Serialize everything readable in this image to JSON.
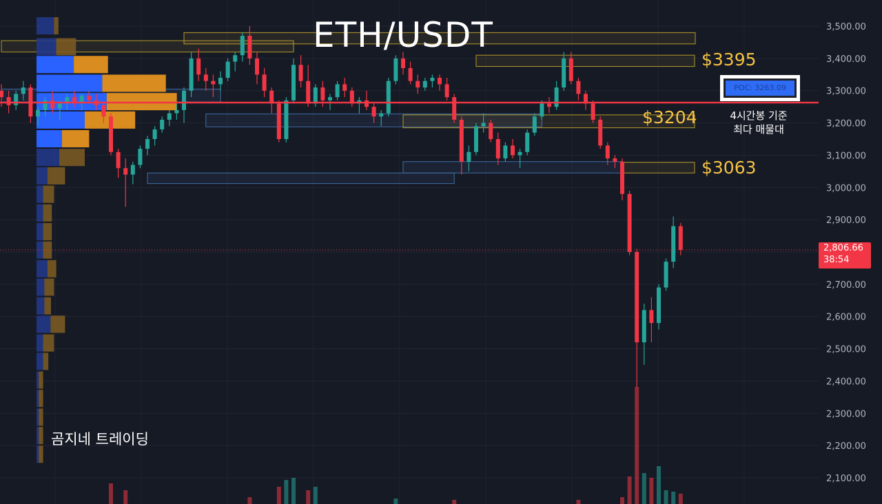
{
  "title": "ETH/USDT",
  "watermark": "곰지네 트레이딩",
  "poc_label": "POC: 3263.09",
  "poc_note": [
    "4시간봉 기준",
    "최다 매물대"
  ],
  "levels": [
    {
      "label": "$3395",
      "price": 3395
    },
    {
      "label": "$3204",
      "price": 3204
    },
    {
      "label": "$3063",
      "price": 3063
    }
  ],
  "last_price": {
    "value": "2,806.66",
    "countdown": "38:54"
  },
  "colors": {
    "background": "#161a25",
    "bull": "#26a69a",
    "bear": "#f23645",
    "poc_line": "#f23645",
    "level_text": "#f5c242",
    "profile_blue": "#2962ff",
    "profile_orange": "#f7931a"
  },
  "chart_data": {
    "type": "candlestick",
    "symbol": "ETH/USDT",
    "y_axis": {
      "ticks": [
        "3,500.00",
        "3,400.00",
        "3,300.00",
        "3,200.00",
        "3,100.00",
        "3,000.00",
        "2,900.00",
        "2,800.00",
        "2,700.00",
        "2,600.00",
        "2,500.00",
        "2,400.00",
        "2,300.00",
        "2,200.00",
        "2,100.00"
      ],
      "ylim": [
        2060,
        3570
      ]
    },
    "poc": 3263.09,
    "last_price": 2806.66,
    "candles": [
      [
        3300,
        3320,
        3250,
        3280
      ],
      [
        3280,
        3300,
        3230,
        3255
      ],
      [
        3255,
        3300,
        3240,
        3290
      ],
      [
        3290,
        3330,
        3270,
        3310
      ],
      [
        3310,
        3320,
        3200,
        3220
      ],
      [
        3220,
        3250,
        3190,
        3240
      ],
      [
        3240,
        3280,
        3220,
        3270
      ],
      [
        3270,
        3300,
        3230,
        3245
      ],
      [
        3245,
        3270,
        3210,
        3260
      ],
      [
        3260,
        3290,
        3240,
        3280
      ],
      [
        3280,
        3300,
        3250,
        3265
      ],
      [
        3265,
        3290,
        3240,
        3285
      ],
      [
        3285,
        3300,
        3260,
        3270
      ],
      [
        3270,
        3290,
        3240,
        3255
      ],
      [
        3255,
        3270,
        3200,
        3220
      ],
      [
        3220,
        3230,
        3100,
        3110
      ],
      [
        3110,
        3120,
        3030,
        3060
      ],
      [
        3060,
        3090,
        2940,
        3040
      ],
      [
        3040,
        3080,
        3010,
        3070
      ],
      [
        3070,
        3130,
        3060,
        3120
      ],
      [
        3120,
        3160,
        3100,
        3150
      ],
      [
        3150,
        3190,
        3130,
        3180
      ],
      [
        3180,
        3220,
        3170,
        3210
      ],
      [
        3210,
        3240,
        3190,
        3230
      ],
      [
        3230,
        3260,
        3210,
        3240
      ],
      [
        3240,
        3310,
        3200,
        3300
      ],
      [
        3300,
        3420,
        3280,
        3400
      ],
      [
        3400,
        3430,
        3330,
        3350
      ],
      [
        3350,
        3370,
        3300,
        3330
      ],
      [
        3330,
        3350,
        3280,
        3320
      ],
      [
        3320,
        3360,
        3300,
        3340
      ],
      [
        3340,
        3400,
        3330,
        3390
      ],
      [
        3390,
        3420,
        3360,
        3410
      ],
      [
        3410,
        3480,
        3390,
        3470
      ],
      [
        3470,
        3500,
        3380,
        3400
      ],
      [
        3400,
        3420,
        3320,
        3350
      ],
      [
        3350,
        3370,
        3280,
        3300
      ],
      [
        3300,
        3310,
        3230,
        3260
      ],
      [
        3260,
        3270,
        3140,
        3150
      ],
      [
        3150,
        3280,
        3140,
        3270
      ],
      [
        3270,
        3400,
        3260,
        3380
      ],
      [
        3380,
        3410,
        3310,
        3330
      ],
      [
        3330,
        3380,
        3250,
        3260
      ],
      [
        3260,
        3320,
        3250,
        3310
      ],
      [
        3310,
        3330,
        3250,
        3270
      ],
      [
        3270,
        3290,
        3240,
        3280
      ],
      [
        3280,
        3330,
        3270,
        3320
      ],
      [
        3320,
        3340,
        3280,
        3300
      ],
      [
        3300,
        3310,
        3250,
        3260
      ],
      [
        3260,
        3280,
        3230,
        3270
      ],
      [
        3270,
        3300,
        3240,
        3250
      ],
      [
        3250,
        3260,
        3200,
        3220
      ],
      [
        3220,
        3240,
        3190,
        3230
      ],
      [
        3230,
        3340,
        3220,
        3330
      ],
      [
        3330,
        3410,
        3320,
        3400
      ],
      [
        3400,
        3420,
        3350,
        3370
      ],
      [
        3370,
        3390,
        3320,
        3330
      ],
      [
        3330,
        3350,
        3290,
        3310
      ],
      [
        3310,
        3340,
        3300,
        3330
      ],
      [
        3330,
        3350,
        3310,
        3340
      ],
      [
        3340,
        3350,
        3300,
        3320
      ],
      [
        3320,
        3340,
        3270,
        3280
      ],
      [
        3280,
        3290,
        3200,
        3210
      ],
      [
        3210,
        3220,
        3040,
        3080
      ],
      [
        3080,
        3130,
        3050,
        3110
      ],
      [
        3110,
        3200,
        3100,
        3190
      ],
      [
        3190,
        3230,
        3170,
        3200
      ],
      [
        3200,
        3210,
        3140,
        3150
      ],
      [
        3150,
        3170,
        3070,
        3090
      ],
      [
        3090,
        3140,
        3080,
        3130
      ],
      [
        3130,
        3150,
        3090,
        3100
      ],
      [
        3100,
        3120,
        3060,
        3110
      ],
      [
        3110,
        3180,
        3100,
        3170
      ],
      [
        3170,
        3230,
        3160,
        3220
      ],
      [
        3220,
        3270,
        3210,
        3260
      ],
      [
        3260,
        3280,
        3230,
        3250
      ],
      [
        3250,
        3330,
        3240,
        3310
      ],
      [
        3310,
        3420,
        3300,
        3400
      ],
      [
        3400,
        3420,
        3320,
        3330
      ],
      [
        3330,
        3340,
        3270,
        3290
      ],
      [
        3290,
        3300,
        3240,
        3260
      ],
      [
        3260,
        3270,
        3200,
        3210
      ],
      [
        3210,
        3220,
        3120,
        3130
      ],
      [
        3130,
        3140,
        3070,
        3090
      ],
      [
        3090,
        3100,
        3060,
        3080
      ],
      [
        3080,
        3090,
        2960,
        2980
      ],
      [
        2980,
        2990,
        2790,
        2800
      ],
      [
        2800,
        2810,
        2380,
        2520
      ],
      [
        2520,
        2640,
        2450,
        2620
      ],
      [
        2620,
        2660,
        2520,
        2580
      ],
      [
        2580,
        2700,
        2560,
        2690
      ],
      [
        2690,
        2780,
        2680,
        2770
      ],
      [
        2770,
        2910,
        2750,
        2880
      ],
      [
        2880,
        2890,
        2790,
        2806.66
      ]
    ],
    "volume_profile": [
      {
        "price": 3500,
        "buy": 40,
        "sell": 10
      },
      {
        "price": 3435,
        "buy": 45,
        "sell": 45
      },
      {
        "price": 3380,
        "buy": 85,
        "sell": 78
      },
      {
        "price": 3322,
        "buy": 150,
        "sell": 145
      },
      {
        "price": 3265,
        "buy": 160,
        "sell": 160
      },
      {
        "price": 3208,
        "buy": 110,
        "sell": 115
      },
      {
        "price": 3150,
        "buy": 58,
        "sell": 62
      },
      {
        "price": 3092,
        "buy": 52,
        "sell": 58
      },
      {
        "price": 3035,
        "buy": 25,
        "sell": 40
      },
      {
        "price": 2978,
        "buy": 15,
        "sell": 25
      },
      {
        "price": 2920,
        "buy": 15,
        "sell": 20
      },
      {
        "price": 2862,
        "buy": 15,
        "sell": 20
      },
      {
        "price": 2805,
        "buy": 15,
        "sell": 20
      },
      {
        "price": 2747,
        "buy": 25,
        "sell": 20
      },
      {
        "price": 2690,
        "buy": 18,
        "sell": 22
      },
      {
        "price": 2632,
        "buy": 18,
        "sell": 15
      },
      {
        "price": 2575,
        "buy": 32,
        "sell": 33
      },
      {
        "price": 2517,
        "buy": 15,
        "sell": 25
      },
      {
        "price": 2460,
        "buy": 15,
        "sell": 12
      },
      {
        "price": 2402,
        "buy": 5,
        "sell": 10
      },
      {
        "price": 2345,
        "buy": 5,
        "sell": 10
      },
      {
        "price": 2287,
        "buy": 5,
        "sell": 10
      },
      {
        "price": 2230,
        "buy": 5,
        "sell": 10
      },
      {
        "price": 2172,
        "buy": 5,
        "sell": 10
      }
    ],
    "zones": [
      {
        "p1": 3480,
        "p2": 3445,
        "c1": 25,
        "c2": 95,
        "color": "yellow"
      },
      {
        "p1": 3410,
        "p2": 3375,
        "c1": 65,
        "c2": 100,
        "color": "yellow"
      },
      {
        "p1": 3228,
        "p2": 3188,
        "c1": 28,
        "c2": 74,
        "color": "blue"
      },
      {
        "p1": 3225,
        "p2": 3185,
        "c1": 55,
        "c2": 100,
        "color": "yellow"
      },
      {
        "p1": 3078,
        "p2": 3045,
        "c1": 85,
        "c2": 100,
        "color": "yellow"
      },
      {
        "p1": 3080,
        "p2": 3045,
        "c1": 55,
        "c2": 85,
        "color": "blue"
      },
      {
        "p1": 3045,
        "p2": 3012,
        "c1": 20,
        "c2": 62,
        "color": "blue"
      },
      {
        "p1": 3455,
        "p2": 3420,
        "c1": 0,
        "c2": 40,
        "color": "yellow"
      },
      {
        "p1": 3305,
        "p2": 3265,
        "c1": 0,
        "c2": 30,
        "color": "blue"
      }
    ],
    "volume": [
      {
        "i": 15,
        "v": 30
      },
      {
        "i": 17,
        "v": 20
      },
      {
        "i": 34,
        "v": 10
      },
      {
        "i": 38,
        "v": 25
      },
      {
        "i": 39,
        "v": 35
      },
      {
        "i": 40,
        "v": 38
      },
      {
        "i": 42,
        "v": 20
      },
      {
        "i": 43,
        "v": 25
      },
      {
        "i": 54,
        "v": 8
      },
      {
        "i": 62,
        "v": 6
      },
      {
        "i": 79,
        "v": 6
      },
      {
        "i": 85,
        "v": 10
      },
      {
        "i": 86,
        "v": 40
      },
      {
        "i": 87,
        "v": 170
      },
      {
        "i": 88,
        "v": 45
      },
      {
        "i": 89,
        "v": 38
      },
      {
        "i": 90,
        "v": 55
      },
      {
        "i": 91,
        "v": 20
      },
      {
        "i": 92,
        "v": 18
      },
      {
        "i": 93,
        "v": 15
      }
    ]
  }
}
